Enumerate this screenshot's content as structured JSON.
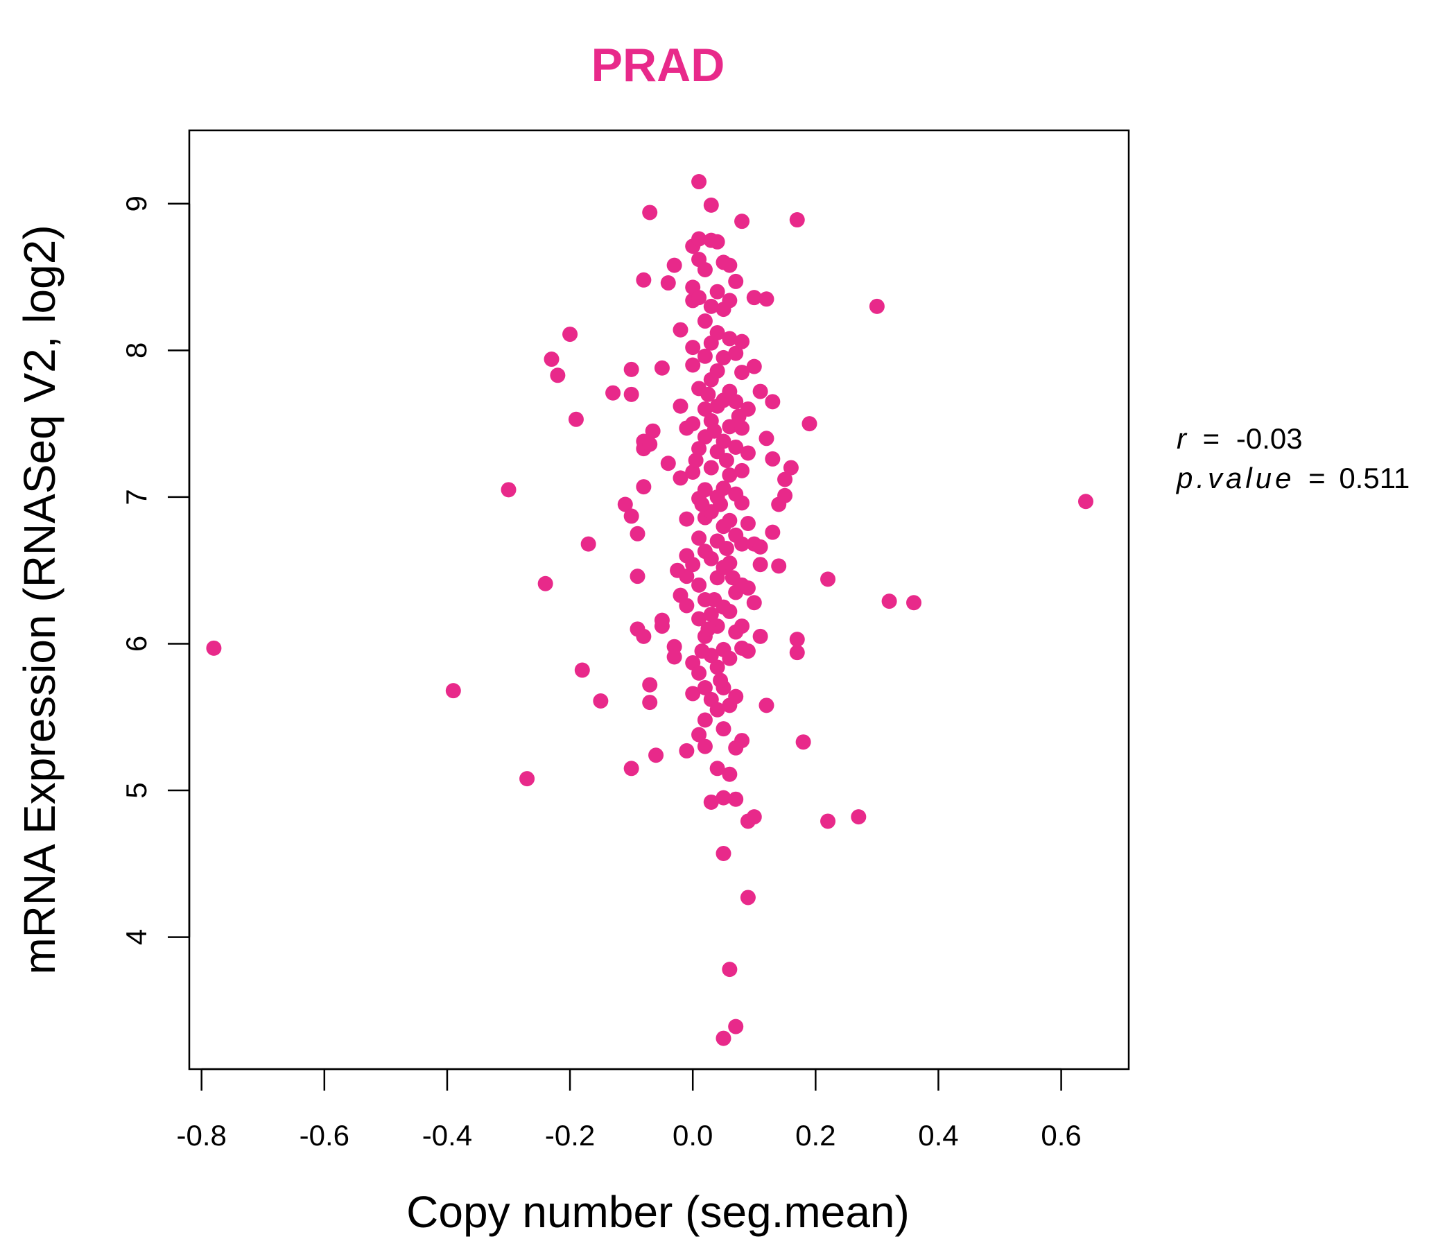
{
  "chart_data": {
    "type": "scatter",
    "title": "PRAD",
    "xlabel": "Copy number (seg.mean)",
    "ylabel": "mRNA Expression (RNASeq V2, log2)",
    "xlim": [
      -0.82,
      0.71
    ],
    "ylim": [
      3.1,
      9.5
    ],
    "xticks": [
      -0.8,
      -0.6,
      -0.4,
      -0.2,
      0.0,
      0.2,
      0.4,
      0.6
    ],
    "xtick_labels": [
      "-0.8",
      "-0.6",
      "-0.4",
      "-0.2",
      "0.0",
      "0.2",
      "0.4",
      "0.6"
    ],
    "yticks": [
      4,
      5,
      6,
      7,
      8,
      9
    ],
    "ytick_labels": [
      "4",
      "5",
      "6",
      "7",
      "8",
      "9"
    ],
    "color": "#e8298a",
    "annotation": {
      "r_symbol": "r",
      "r_value": "-0.03",
      "p_symbol": "p.value",
      "p_value": "0.511",
      "equals": "="
    },
    "points": [
      [
        -0.78,
        5.97
      ],
      [
        -0.39,
        5.68
      ],
      [
        -0.3,
        7.05
      ],
      [
        -0.27,
        5.08
      ],
      [
        -0.24,
        6.41
      ],
      [
        -0.23,
        7.94
      ],
      [
        -0.22,
        7.83
      ],
      [
        -0.2,
        8.11
      ],
      [
        -0.19,
        7.53
      ],
      [
        -0.17,
        6.68
      ],
      [
        -0.18,
        5.82
      ],
      [
        -0.15,
        5.61
      ],
      [
        -0.13,
        7.71
      ],
      [
        -0.11,
        6.95
      ],
      [
        -0.1,
        7.7
      ],
      [
        -0.1,
        7.87
      ],
      [
        -0.1,
        6.87
      ],
      [
        -0.1,
        5.15
      ],
      [
        -0.09,
        6.75
      ],
      [
        -0.09,
        6.46
      ],
      [
        -0.09,
        6.1
      ],
      [
        -0.08,
        7.33
      ],
      [
        -0.08,
        7.38
      ],
      [
        -0.08,
        7.07
      ],
      [
        -0.08,
        6.05
      ],
      [
        -0.07,
        8.94
      ],
      [
        -0.08,
        8.48
      ],
      [
        -0.07,
        7.36
      ],
      [
        -0.07,
        5.72
      ],
      [
        -0.07,
        5.6
      ],
      [
        -0.06,
        5.24
      ],
      [
        -0.05,
        7.88
      ],
      [
        -0.05,
        6.16
      ],
      [
        -0.05,
        6.12
      ],
      [
        -0.04,
        8.46
      ],
      [
        -0.04,
        7.23
      ],
      [
        -0.03,
        8.58
      ],
      [
        -0.03,
        5.98
      ],
      [
        -0.03,
        5.91
      ],
      [
        -0.02,
        7.62
      ],
      [
        -0.02,
        7.13
      ],
      [
        -0.02,
        6.33
      ],
      [
        -0.02,
        8.14
      ],
      [
        -0.01,
        6.85
      ],
      [
        -0.01,
        6.6
      ],
      [
        -0.01,
        6.46
      ],
      [
        -0.01,
        6.26
      ],
      [
        -0.01,
        5.27
      ],
      [
        -0.01,
        7.47
      ],
      [
        0.0,
        8.43
      ],
      [
        0.0,
        7.9
      ],
      [
        0.0,
        7.5
      ],
      [
        0.0,
        7.17
      ],
      [
        0.0,
        6.54
      ],
      [
        0.0,
        5.87
      ],
      [
        0.0,
        5.66
      ],
      [
        0.0,
        8.71
      ],
      [
        0.0,
        8.34
      ],
      [
        0.0,
        8.02
      ],
      [
        0.01,
        9.15
      ],
      [
        0.01,
        8.76
      ],
      [
        0.01,
        8.62
      ],
      [
        0.01,
        8.36
      ],
      [
        0.01,
        7.74
      ],
      [
        0.01,
        7.33
      ],
      [
        0.01,
        6.99
      ],
      [
        0.01,
        6.72
      ],
      [
        0.01,
        6.4
      ],
      [
        0.01,
        6.17
      ],
      [
        0.01,
        5.8
      ],
      [
        0.01,
        5.38
      ],
      [
        0.02,
        8.55
      ],
      [
        0.02,
        8.2
      ],
      [
        0.02,
        7.96
      ],
      [
        0.02,
        7.6
      ],
      [
        0.02,
        7.41
      ],
      [
        0.02,
        7.05
      ],
      [
        0.02,
        6.86
      ],
      [
        0.02,
        6.63
      ],
      [
        0.02,
        6.3
      ],
      [
        0.02,
        6.05
      ],
      [
        0.02,
        5.7
      ],
      [
        0.02,
        5.48
      ],
      [
        0.02,
        5.3
      ],
      [
        0.03,
        8.75
      ],
      [
        0.03,
        8.3
      ],
      [
        0.03,
        8.05
      ],
      [
        0.03,
        7.8
      ],
      [
        0.03,
        7.52
      ],
      [
        0.03,
        7.2
      ],
      [
        0.03,
        6.9
      ],
      [
        0.03,
        6.58
      ],
      [
        0.03,
        6.2
      ],
      [
        0.03,
        5.92
      ],
      [
        0.03,
        5.62
      ],
      [
        0.03,
        8.99
      ],
      [
        0.03,
        4.92
      ],
      [
        0.04,
        8.74
      ],
      [
        0.04,
        8.4
      ],
      [
        0.04,
        8.12
      ],
      [
        0.04,
        7.86
      ],
      [
        0.04,
        7.62
      ],
      [
        0.04,
        7.31
      ],
      [
        0.04,
        7.0
      ],
      [
        0.04,
        6.7
      ],
      [
        0.04,
        6.45
      ],
      [
        0.04,
        6.12
      ],
      [
        0.04,
        5.84
      ],
      [
        0.04,
        5.55
      ],
      [
        0.04,
        5.15
      ],
      [
        0.05,
        8.6
      ],
      [
        0.05,
        8.28
      ],
      [
        0.05,
        7.95
      ],
      [
        0.05,
        7.66
      ],
      [
        0.05,
        7.38
      ],
      [
        0.05,
        7.06
      ],
      [
        0.05,
        6.8
      ],
      [
        0.05,
        6.52
      ],
      [
        0.05,
        6.25
      ],
      [
        0.05,
        5.96
      ],
      [
        0.05,
        5.7
      ],
      [
        0.05,
        5.42
      ],
      [
        0.05,
        4.95
      ],
      [
        0.05,
        4.57
      ],
      [
        0.05,
        3.31
      ],
      [
        0.06,
        8.58
      ],
      [
        0.06,
        8.34
      ],
      [
        0.06,
        8.08
      ],
      [
        0.06,
        7.72
      ],
      [
        0.06,
        7.48
      ],
      [
        0.06,
        7.15
      ],
      [
        0.06,
        6.84
      ],
      [
        0.06,
        6.55
      ],
      [
        0.06,
        6.22
      ],
      [
        0.06,
        5.9
      ],
      [
        0.06,
        5.58
      ],
      [
        0.06,
        5.11
      ],
      [
        0.06,
        3.78
      ],
      [
        0.07,
        8.47
      ],
      [
        0.07,
        7.98
      ],
      [
        0.07,
        7.65
      ],
      [
        0.07,
        7.34
      ],
      [
        0.07,
        7.02
      ],
      [
        0.07,
        6.74
      ],
      [
        0.07,
        6.35
      ],
      [
        0.07,
        6.08
      ],
      [
        0.07,
        5.64
      ],
      [
        0.07,
        5.29
      ],
      [
        0.07,
        4.94
      ],
      [
        0.07,
        3.39
      ],
      [
        0.08,
        8.88
      ],
      [
        0.08,
        8.06
      ],
      [
        0.08,
        7.85
      ],
      [
        0.08,
        7.47
      ],
      [
        0.08,
        7.18
      ],
      [
        0.08,
        6.96
      ],
      [
        0.08,
        6.68
      ],
      [
        0.08,
        6.4
      ],
      [
        0.08,
        6.12
      ],
      [
        0.08,
        5.97
      ],
      [
        0.08,
        5.34
      ],
      [
        0.09,
        7.6
      ],
      [
        0.09,
        7.3
      ],
      [
        0.09,
        6.82
      ],
      [
        0.09,
        6.38
      ],
      [
        0.09,
        5.95
      ],
      [
        0.09,
        4.79
      ],
      [
        0.1,
        8.36
      ],
      [
        0.1,
        7.89
      ],
      [
        0.1,
        6.68
      ],
      [
        0.1,
        6.28
      ],
      [
        0.1,
        4.82
      ],
      [
        0.09,
        4.27
      ],
      [
        0.11,
        7.72
      ],
      [
        0.11,
        6.66
      ],
      [
        0.11,
        6.05
      ],
      [
        0.11,
        6.54
      ],
      [
        0.12,
        8.35
      ],
      [
        0.12,
        7.4
      ],
      [
        0.12,
        5.58
      ],
      [
        0.13,
        7.65
      ],
      [
        0.13,
        6.76
      ],
      [
        0.13,
        7.26
      ],
      [
        0.14,
        6.95
      ],
      [
        0.14,
        6.53
      ],
      [
        0.15,
        7.12
      ],
      [
        0.15,
        7.01
      ],
      [
        0.16,
        7.2
      ],
      [
        0.17,
        8.89
      ],
      [
        0.17,
        6.03
      ],
      [
        0.17,
        5.94
      ],
      [
        0.18,
        5.33
      ],
      [
        0.19,
        7.5
      ],
      [
        0.22,
        6.44
      ],
      [
        0.22,
        4.79
      ],
      [
        0.27,
        4.82
      ],
      [
        0.3,
        8.3
      ],
      [
        0.32,
        6.29
      ],
      [
        0.36,
        6.28
      ],
      [
        0.64,
        6.97
      ],
      [
        -0.065,
        7.45
      ],
      [
        -0.025,
        6.5
      ],
      [
        0.015,
        6.95
      ],
      [
        0.025,
        7.7
      ],
      [
        0.035,
        6.3
      ],
      [
        0.045,
        6.95
      ],
      [
        0.055,
        7.25
      ],
      [
        0.065,
        6.45
      ],
      [
        0.075,
        7.55
      ],
      [
        0.015,
        5.95
      ],
      [
        0.035,
        7.45
      ],
      [
        0.045,
        5.75
      ],
      [
        0.025,
        6.1
      ],
      [
        0.005,
        7.25
      ],
      [
        0.055,
        6.65
      ]
    ]
  }
}
